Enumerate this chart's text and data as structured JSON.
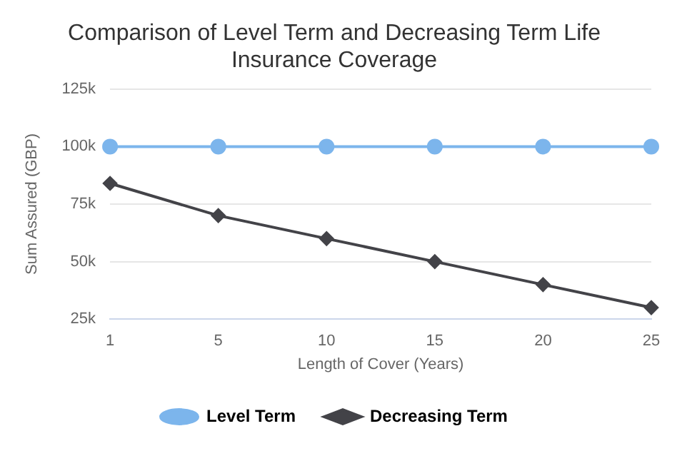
{
  "chart_data": {
    "type": "line",
    "title": "Comparison of Level Term and Decreasing Term Life Insurance Coverage",
    "xlabel": "Length of Cover (Years)",
    "ylabel": "Sum Assured (GBP)",
    "categories": [
      "1",
      "5",
      "10",
      "15",
      "20",
      "25"
    ],
    "series": [
      {
        "name": "Level Term",
        "color": "#7cb5ec",
        "marker": "circle",
        "values": [
          100000,
          100000,
          100000,
          100000,
          100000,
          100000
        ]
      },
      {
        "name": "Decreasing Term",
        "color": "#434348",
        "marker": "diamond",
        "values": [
          84000,
          70000,
          60000,
          50000,
          40000,
          30000
        ]
      }
    ],
    "ylim": [
      25000,
      125000
    ],
    "yticks": [
      {
        "value": 25000,
        "label": "25k"
      },
      {
        "value": 50000,
        "label": "50k"
      },
      {
        "value": 75000,
        "label": "75k"
      },
      {
        "value": 100000,
        "label": "100k"
      },
      {
        "value": 125000,
        "label": "125k"
      }
    ],
    "grid": "y",
    "legend": "bottom"
  }
}
